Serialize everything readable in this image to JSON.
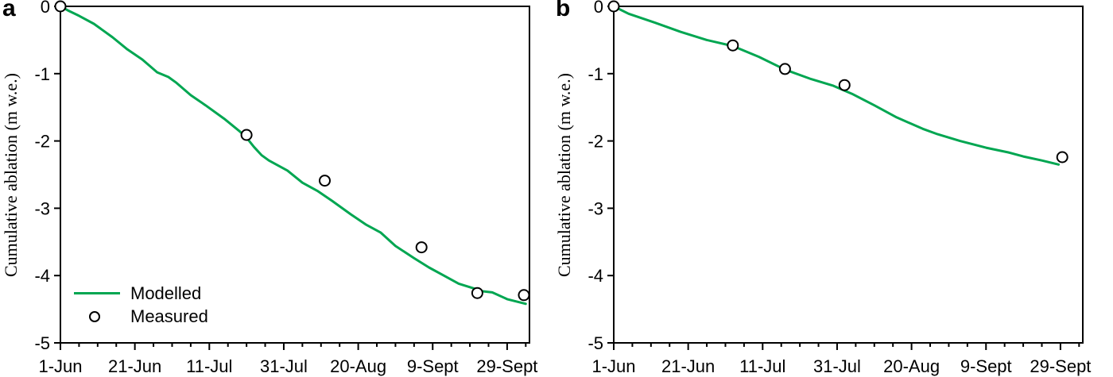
{
  "figure": {
    "background": "#ffffff",
    "axis_color": "#000000",
    "modelled_color": "#00a651",
    "marker_fill": "#ffffff",
    "marker_stroke": "#000000"
  },
  "chart_data": [
    {
      "type": "line",
      "panel_label": "a",
      "title": "",
      "xlabel": "",
      "ylabel": "Cumulative ablation (m w.e.)",
      "x_unit": "days since 1-Jun",
      "xlim": [
        0,
        126
      ],
      "ylim": [
        -5,
        0
      ],
      "grid": false,
      "x_major_ticks": [
        {
          "day": 0,
          "label": "1-Jun"
        },
        {
          "day": 20,
          "label": "21-Jun"
        },
        {
          "day": 40,
          "label": "11-Jul"
        },
        {
          "day": 60,
          "label": "31-Jul"
        },
        {
          "day": 80,
          "label": "20-Aug"
        },
        {
          "day": 100,
          "label": "9-Sept"
        },
        {
          "day": 120,
          "label": "29-Sept"
        }
      ],
      "x_minor_step": 5,
      "y_ticks": [
        0,
        -1,
        -2,
        -3,
        -4,
        -5
      ],
      "legend": {
        "visible": true,
        "position": "lower-left",
        "entries": [
          "Modelled",
          "Measured"
        ]
      },
      "series": [
        {
          "name": "Modelled",
          "type": "line",
          "color": "#00a651",
          "points": [
            [
              0,
              0
            ],
            [
              2,
              -0.06
            ],
            [
              5,
              -0.14
            ],
            [
              9,
              -0.26
            ],
            [
              14,
              -0.46
            ],
            [
              18,
              -0.64
            ],
            [
              22,
              -0.79
            ],
            [
              26,
              -0.98
            ],
            [
              29,
              -1.05
            ],
            [
              31,
              -1.13
            ],
            [
              35,
              -1.32
            ],
            [
              39,
              -1.47
            ],
            [
              44,
              -1.67
            ],
            [
              48,
              -1.85
            ],
            [
              50,
              -1.95
            ],
            [
              52,
              -2.09
            ],
            [
              54,
              -2.21
            ],
            [
              56,
              -2.29
            ],
            [
              61,
              -2.44
            ],
            [
              65,
              -2.62
            ],
            [
              69,
              -2.74
            ],
            [
              73,
              -2.89
            ],
            [
              78,
              -3.09
            ],
            [
              82,
              -3.24
            ],
            [
              86,
              -3.36
            ],
            [
              90,
              -3.56
            ],
            [
              95,
              -3.74
            ],
            [
              99,
              -3.88
            ],
            [
              103,
              -4.0
            ],
            [
              107,
              -4.12
            ],
            [
              111,
              -4.19
            ],
            [
              113,
              -4.23
            ],
            [
              116,
              -4.25
            ],
            [
              120,
              -4.35
            ],
            [
              125,
              -4.42
            ]
          ]
        },
        {
          "name": "Measured",
          "type": "scatter",
          "marker": "open-circle",
          "points": [
            [
              0,
              0
            ],
            [
              50,
              -1.91
            ],
            [
              71,
              -2.59
            ],
            [
              97,
              -3.58
            ],
            [
              112,
              -4.26
            ],
            [
              124.5,
              -4.29
            ]
          ]
        }
      ]
    },
    {
      "type": "line",
      "panel_label": "b",
      "title": "",
      "xlabel": "",
      "ylabel": "Cumulative ablation (m w.e.)",
      "x_unit": "days since 1-Jun",
      "xlim": [
        0,
        126
      ],
      "ylim": [
        -5,
        0
      ],
      "grid": false,
      "x_major_ticks": [
        {
          "day": 0,
          "label": "1-Jun"
        },
        {
          "day": 20,
          "label": "21-Jun"
        },
        {
          "day": 40,
          "label": "11-Jul"
        },
        {
          "day": 60,
          "label": "31-Jul"
        },
        {
          "day": 80,
          "label": "20-Aug"
        },
        {
          "day": 100,
          "label": "9-Sept"
        },
        {
          "day": 120,
          "label": "29-Sept"
        }
      ],
      "x_minor_step": 5,
      "y_ticks": [
        0,
        -1,
        -2,
        -3,
        -4,
        -5
      ],
      "legend": {
        "visible": false,
        "position": "none",
        "entries": [
          "Modelled",
          "Measured"
        ]
      },
      "series": [
        {
          "name": "Modelled",
          "type": "line",
          "color": "#00a651",
          "points": [
            [
              0,
              0
            ],
            [
              4,
              -0.11
            ],
            [
              11,
              -0.24
            ],
            [
              18,
              -0.38
            ],
            [
              25,
              -0.5
            ],
            [
              32,
              -0.59
            ],
            [
              39,
              -0.75
            ],
            [
              46,
              -0.94
            ],
            [
              53,
              -1.08
            ],
            [
              59,
              -1.18
            ],
            [
              64,
              -1.3
            ],
            [
              70,
              -1.47
            ],
            [
              76,
              -1.65
            ],
            [
              83,
              -1.82
            ],
            [
              87,
              -1.9
            ],
            [
              93,
              -2.0
            ],
            [
              100,
              -2.1
            ],
            [
              106,
              -2.17
            ],
            [
              110,
              -2.23
            ],
            [
              115,
              -2.29
            ],
            [
              119.5,
              -2.35
            ]
          ]
        },
        {
          "name": "Measured",
          "type": "scatter",
          "marker": "open-circle",
          "points": [
            [
              0,
              0
            ],
            [
              32,
              -0.58
            ],
            [
              46,
              -0.93
            ],
            [
              62,
              -1.17
            ],
            [
              120.5,
              -2.24
            ]
          ]
        }
      ]
    }
  ]
}
